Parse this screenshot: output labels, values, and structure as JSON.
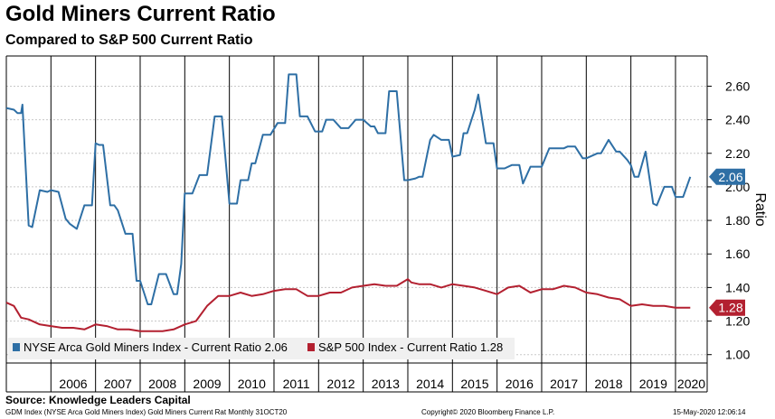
{
  "header": {
    "title": "Gold Miners Current Ratio",
    "subtitle": "Compared to S&P 500 Current Ratio"
  },
  "chart_data": {
    "type": "line",
    "title": "Gold Miners Current Ratio",
    "subtitle": "Compared to S&P 500 Current Ratio",
    "ylabel": "Ratio",
    "xlabel": "",
    "ylim": [
      0.95,
      2.78
    ],
    "xlim": [
      2005.0,
      2020.71
    ],
    "grid": true,
    "legend_position": "bottom-left",
    "y_ticks": [
      "1.00",
      "1.20",
      "1.40",
      "1.60",
      "1.80",
      "2.00",
      "2.20",
      "2.40",
      "2.60"
    ],
    "x_tick_labels": [
      "2006",
      "2007",
      "2008",
      "2009",
      "2010",
      "2011",
      "2012",
      "2013",
      "2014",
      "2015",
      "2016",
      "2017",
      "2018",
      "2019",
      "2020"
    ],
    "series": [
      {
        "name": "NYSE Arca Gold Miners Index - Current Ratio 2.06",
        "color": "#2e6fa5",
        "last_value_label": "2.06",
        "x": [
          2005.0,
          2005.17,
          2005.25,
          2005.33,
          2005.36,
          2005.5,
          2005.58,
          2005.75,
          2005.92,
          2006.0,
          2006.17,
          2006.33,
          2006.42,
          2006.58,
          2006.75,
          2006.83,
          2006.92,
          2007.0,
          2007.08,
          2007.17,
          2007.33,
          2007.42,
          2007.5,
          2007.67,
          2007.75,
          2007.83,
          2007.92,
          2008.0,
          2008.17,
          2008.25,
          2008.42,
          2008.5,
          2008.58,
          2008.75,
          2008.83,
          2008.92,
          2009.0,
          2009.08,
          2009.17,
          2009.33,
          2009.5,
          2009.67,
          2009.75,
          2009.83,
          2010.0,
          2010.17,
          2010.25,
          2010.42,
          2010.5,
          2010.58,
          2010.75,
          2010.92,
          2011.08,
          2011.25,
          2011.33,
          2011.5,
          2011.58,
          2011.75,
          2011.92,
          2012.08,
          2012.17,
          2012.33,
          2012.5,
          2012.67,
          2012.83,
          2013.0,
          2013.17,
          2013.25,
          2013.33,
          2013.5,
          2013.58,
          2013.75,
          2013.92,
          2014.0,
          2014.17,
          2014.25,
          2014.33,
          2014.5,
          2014.58,
          2014.75,
          2014.92,
          2015.0,
          2015.17,
          2015.25,
          2015.33,
          2015.5,
          2015.58,
          2015.75,
          2015.92,
          2016.0,
          2016.17,
          2016.33,
          2016.5,
          2016.58,
          2016.75,
          2016.92,
          2017.0,
          2017.17,
          2017.33,
          2017.5,
          2017.58,
          2017.75,
          2017.92,
          2018.0,
          2018.17,
          2018.25,
          2018.33,
          2018.5,
          2018.67,
          2018.75,
          2018.92,
          2019.0,
          2019.08,
          2019.17,
          2019.33,
          2019.5,
          2019.58,
          2019.75,
          2019.92,
          2020.0,
          2020.17,
          2020.33
        ],
        "values": [
          2.47,
          2.46,
          2.44,
          2.44,
          2.49,
          1.77,
          1.76,
          1.98,
          1.97,
          1.98,
          1.97,
          1.81,
          1.78,
          1.75,
          1.89,
          1.89,
          1.89,
          2.26,
          2.25,
          2.25,
          1.89,
          1.89,
          1.86,
          1.72,
          1.72,
          1.72,
          1.44,
          1.44,
          1.3,
          1.3,
          1.48,
          1.48,
          1.48,
          1.36,
          1.36,
          1.54,
          1.96,
          1.96,
          1.96,
          2.07,
          2.07,
          2.42,
          2.42,
          2.42,
          1.9,
          1.9,
          2.04,
          2.04,
          2.14,
          2.14,
          2.31,
          2.31,
          2.38,
          2.38,
          2.67,
          2.67,
          2.42,
          2.42,
          2.33,
          2.33,
          2.4,
          2.4,
          2.35,
          2.35,
          2.4,
          2.4,
          2.36,
          2.36,
          2.32,
          2.32,
          2.57,
          2.57,
          2.04,
          2.04,
          2.05,
          2.06,
          2.06,
          2.28,
          2.31,
          2.28,
          2.28,
          2.18,
          2.19,
          2.32,
          2.32,
          2.46,
          2.55,
          2.26,
          2.26,
          2.11,
          2.11,
          2.13,
          2.13,
          2.02,
          2.12,
          2.12,
          2.12,
          2.23,
          2.23,
          2.23,
          2.24,
          2.24,
          2.17,
          2.17,
          2.19,
          2.2,
          2.2,
          2.28,
          2.21,
          2.21,
          2.16,
          2.13,
          2.06,
          2.06,
          2.21,
          1.9,
          1.89,
          2.0,
          2.0,
          1.94,
          1.94,
          2.06
        ]
      },
      {
        "name": "S&P 500 Index - Current Ratio 1.28",
        "color": "#b32030",
        "last_value_label": "1.28",
        "x": [
          2005.0,
          2005.17,
          2005.33,
          2005.5,
          2005.75,
          2006.0,
          2006.25,
          2006.5,
          2006.75,
          2007.0,
          2007.25,
          2007.5,
          2007.75,
          2008.0,
          2008.25,
          2008.5,
          2008.75,
          2009.0,
          2009.25,
          2009.5,
          2009.75,
          2010.0,
          2010.25,
          2010.5,
          2010.75,
          2011.0,
          2011.25,
          2011.5,
          2011.75,
          2012.0,
          2012.25,
          2012.5,
          2012.75,
          2013.0,
          2013.25,
          2013.5,
          2013.75,
          2014.0,
          2014.08,
          2014.25,
          2014.5,
          2014.75,
          2015.0,
          2015.25,
          2015.5,
          2015.75,
          2016.0,
          2016.25,
          2016.5,
          2016.75,
          2017.0,
          2017.25,
          2017.5,
          2017.75,
          2018.0,
          2018.25,
          2018.5,
          2018.75,
          2019.0,
          2019.25,
          2019.5,
          2019.75,
          2020.0,
          2020.17,
          2020.33
        ],
        "values": [
          1.31,
          1.29,
          1.22,
          1.21,
          1.18,
          1.17,
          1.16,
          1.16,
          1.15,
          1.18,
          1.17,
          1.15,
          1.15,
          1.14,
          1.14,
          1.14,
          1.15,
          1.18,
          1.2,
          1.29,
          1.35,
          1.35,
          1.37,
          1.35,
          1.36,
          1.38,
          1.39,
          1.39,
          1.35,
          1.35,
          1.37,
          1.37,
          1.4,
          1.41,
          1.42,
          1.41,
          1.41,
          1.45,
          1.43,
          1.42,
          1.42,
          1.4,
          1.42,
          1.41,
          1.4,
          1.38,
          1.36,
          1.4,
          1.41,
          1.37,
          1.39,
          1.39,
          1.41,
          1.4,
          1.37,
          1.36,
          1.34,
          1.33,
          1.29,
          1.3,
          1.29,
          1.29,
          1.28,
          1.28,
          1.28
        ]
      }
    ]
  },
  "source": "Source: Knowledge Leaders Capital",
  "footer": {
    "left": "GDM Index (NYSE Arca Gold Miners Index) Gold Miners Current Rat  Monthly 31OCT20",
    "middle": "Copyright© 2020 Bloomberg Finance L.P.",
    "right": "15-May-2020 12:06:14"
  }
}
